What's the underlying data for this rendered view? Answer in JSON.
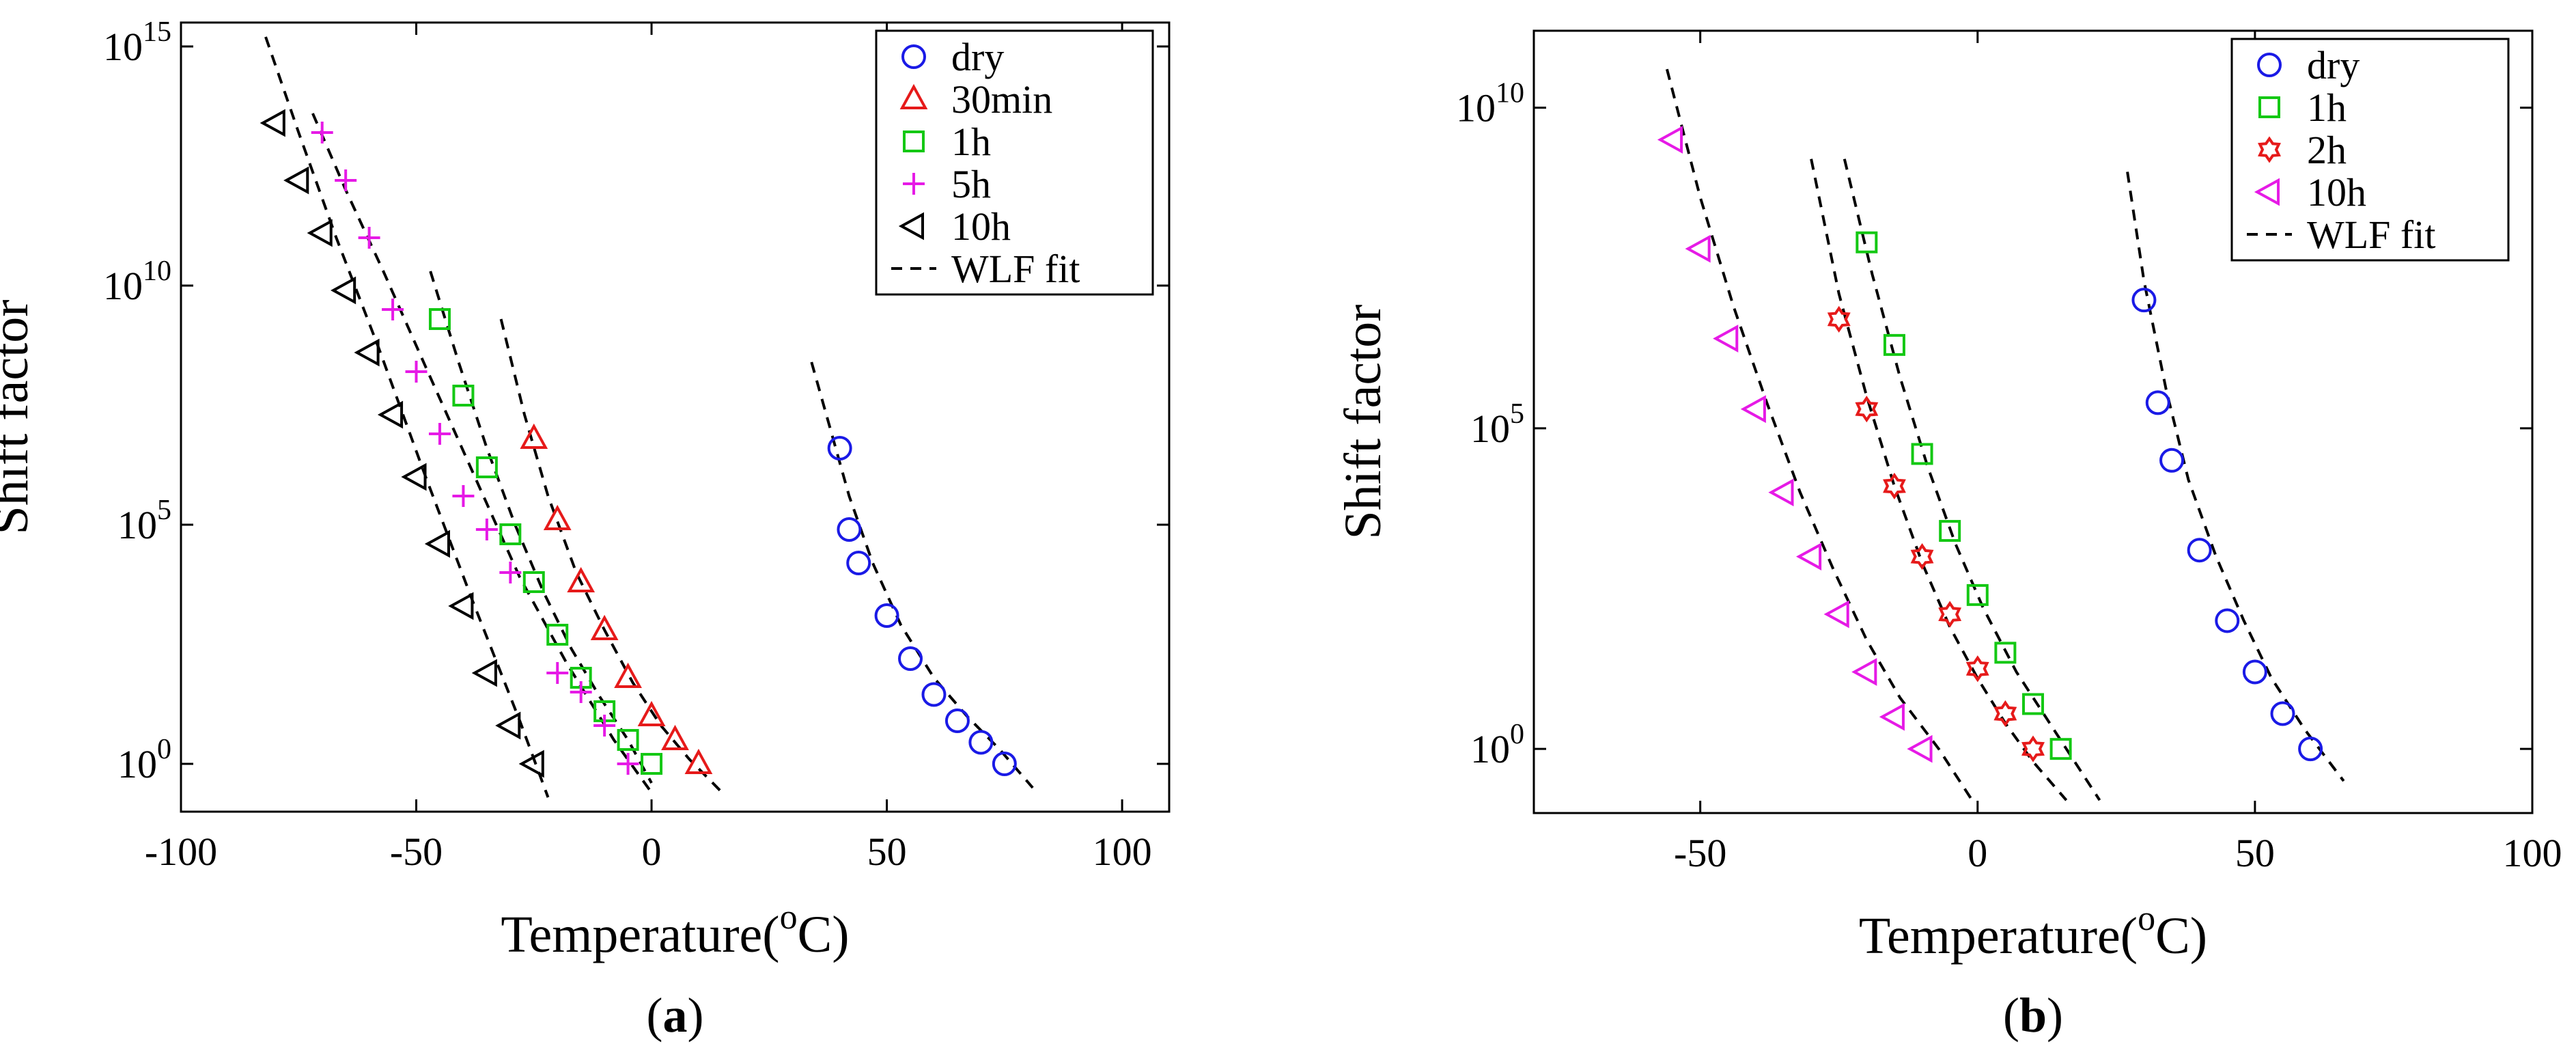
{
  "chart_data": [
    {
      "type": "scatter",
      "panel_label": {
        "open": "(",
        "letter": "a",
        "close": ")"
      },
      "xlabel": {
        "main": "Temperature(",
        "sup": "o",
        "unit": "C)"
      },
      "ylabel": "Shift factor",
      "xlim": [
        -100,
        110
      ],
      "ylim_log10": [
        -1,
        15.5
      ],
      "y_scale": "log",
      "x_ticks": [
        {
          "value": -100,
          "label": "-100"
        },
        {
          "value": -50,
          "label": "-50"
        },
        {
          "value": 0,
          "label": "0"
        },
        {
          "value": 50,
          "label": "50"
        },
        {
          "value": 100,
          "label": "100"
        }
      ],
      "y_ticks": [
        {
          "exp": 0,
          "base": "10",
          "sup": "0"
        },
        {
          "exp": 5,
          "base": "10",
          "sup": "5"
        },
        {
          "exp": 10,
          "base": "10",
          "sup": "10"
        },
        {
          "exp": 15,
          "base": "10",
          "sup": "15"
        }
      ],
      "grid": false,
      "legend_position": "top-right",
      "series": [
        {
          "name": "dry",
          "marker": "circle",
          "color": "#1a1ae6",
          "points": [
            [
              40,
              6.6
            ],
            [
              42,
              4.9
            ],
            [
              44,
              4.2
            ],
            [
              50,
              3.1
            ],
            [
              55,
              2.2
            ],
            [
              60,
              1.45
            ],
            [
              65,
              0.9
            ],
            [
              70,
              0.45
            ],
            [
              75,
              0
            ]
          ]
        },
        {
          "name": "30min",
          "marker": "triangle-up",
          "color": "#e61a1a",
          "points": [
            [
              -25,
              6.8
            ],
            [
              -20,
              5.1
            ],
            [
              -15,
              3.8
            ],
            [
              -10,
              2.8
            ],
            [
              -5,
              1.8
            ],
            [
              0,
              1.0
            ],
            [
              5,
              0.5
            ],
            [
              10,
              0
            ]
          ]
        },
        {
          "name": "1h",
          "marker": "square",
          "color": "#14c814",
          "points": [
            [
              -45,
              9.3
            ],
            [
              -40,
              7.7
            ],
            [
              -35,
              6.2
            ],
            [
              -30,
              4.8
            ],
            [
              -25,
              3.8
            ],
            [
              -20,
              2.7
            ],
            [
              -15,
              1.8
            ],
            [
              -10,
              1.1
            ],
            [
              -5,
              0.5
            ],
            [
              0,
              0
            ]
          ]
        },
        {
          "name": "5h",
          "marker": "plus",
          "color": "#e61ae6",
          "points": [
            [
              -70,
              13.2
            ],
            [
              -65,
              12.2
            ],
            [
              -60,
              11.0
            ],
            [
              -55,
              9.5
            ],
            [
              -50,
              8.2
            ],
            [
              -45,
              6.9
            ],
            [
              -40,
              5.6
            ],
            [
              -35,
              4.9
            ],
            [
              -30,
              4.0
            ],
            [
              -20,
              1.9
            ],
            [
              -15,
              1.5
            ],
            [
              -10,
              0.8
            ],
            [
              -5,
              0
            ]
          ]
        },
        {
          "name": "10h",
          "marker": "triangle-left",
          "color": "#000000",
          "points": [
            [
              -80,
              13.4
            ],
            [
              -75,
              12.2
            ],
            [
              -70,
              11.1
            ],
            [
              -65,
              9.9
            ],
            [
              -60,
              8.6
            ],
            [
              -55,
              7.3
            ],
            [
              -50,
              6.0
            ],
            [
              -45,
              4.6
            ],
            [
              -40,
              3.3
            ],
            [
              -35,
              1.9
            ],
            [
              -30,
              0.8
            ],
            [
              -25,
              0
            ]
          ]
        }
      ],
      "wlf_fits": [
        {
          "name": "WLF fit",
          "x": [
            -82,
            -75,
            -67,
            -58,
            -48,
            -38,
            -28,
            -22
          ],
          "logy": [
            15.2,
            13.2,
            11.0,
            8.7,
            6.0,
            3.4,
            0.9,
            -0.7
          ]
        },
        {
          "name": "WLF fit",
          "x": [
            -72,
            -65,
            -57,
            -48,
            -38,
            -28,
            -18,
            -8,
            0
          ],
          "logy": [
            13.6,
            12.0,
            10.3,
            8.3,
            6.1,
            3.9,
            2.1,
            0.5,
            -0.6
          ]
        },
        {
          "name": "WLF fit",
          "x": [
            -47,
            -41,
            -35,
            -29,
            -23,
            -17,
            -11,
            -5,
            0
          ],
          "logy": [
            10.3,
            8.4,
            6.6,
            5.0,
            3.6,
            2.4,
            1.4,
            0.5,
            -0.4
          ]
        },
        {
          "name": "WLF fit",
          "x": [
            -32,
            -27,
            -22,
            -16,
            -10,
            -4,
            2,
            8,
            15
          ],
          "logy": [
            9.3,
            7.3,
            5.6,
            4.0,
            2.8,
            1.7,
            0.8,
            0.1,
            -0.6
          ]
        },
        {
          "name": "WLF fit",
          "x": [
            34,
            38,
            42,
            47,
            53,
            60,
            67,
            74,
            81
          ],
          "logy": [
            8.4,
            7.0,
            5.6,
            4.2,
            2.9,
            1.8,
            1.0,
            0.3,
            -0.5
          ]
        }
      ]
    },
    {
      "type": "scatter",
      "panel_label": {
        "open": "(",
        "letter": "b",
        "close": ")"
      },
      "xlabel": {
        "main": "Temperature(",
        "sup": "o",
        "unit": "C)"
      },
      "ylabel": "Shift factor",
      "xlim": [
        -80,
        100
      ],
      "ylim_log10": [
        -1,
        11.2
      ],
      "y_scale": "log",
      "x_ticks": [
        {
          "value": -50,
          "label": "-50"
        },
        {
          "value": 0,
          "label": "0"
        },
        {
          "value": 50,
          "label": "50"
        },
        {
          "value": 100,
          "label": "100"
        }
      ],
      "y_ticks": [
        {
          "exp": 0,
          "base": "10",
          "sup": "0"
        },
        {
          "exp": 5,
          "base": "10",
          "sup": "5"
        },
        {
          "exp": 10,
          "base": "10",
          "sup": "10"
        }
      ],
      "grid": false,
      "legend_position": "top-right",
      "series": [
        {
          "name": "dry",
          "marker": "circle",
          "color": "#1a1ae6",
          "points": [
            [
              30,
              7.0
            ],
            [
              32.5,
              5.4
            ],
            [
              35,
              4.5
            ],
            [
              40,
              3.1
            ],
            [
              45,
              2.0
            ],
            [
              50,
              1.2
            ],
            [
              55,
              0.55
            ],
            [
              60,
              0
            ]
          ]
        },
        {
          "name": "1h",
          "marker": "square",
          "color": "#14c814",
          "points": [
            [
              -20,
              7.9
            ],
            [
              -15,
              6.3
            ],
            [
              -10,
              4.6
            ],
            [
              -5,
              3.4
            ],
            [
              0,
              2.4
            ],
            [
              5,
              1.5
            ],
            [
              10,
              0.7
            ],
            [
              15,
              0
            ]
          ]
        },
        {
          "name": "2h",
          "marker": "hexagram",
          "color": "#e61a1a",
          "points": [
            [
              -25,
              6.7
            ],
            [
              -20,
              5.3
            ],
            [
              -15,
              4.1
            ],
            [
              -10,
              3.0
            ],
            [
              -5,
              2.1
            ],
            [
              0,
              1.25
            ],
            [
              5,
              0.55
            ],
            [
              10,
              0
            ]
          ]
        },
        {
          "name": "10h",
          "marker": "triangle-left",
          "color": "#e61ae6",
          "points": [
            [
              -55,
              9.5
            ],
            [
              -50,
              7.8
            ],
            [
              -45,
              6.4
            ],
            [
              -40,
              5.3
            ],
            [
              -35,
              4.0
            ],
            [
              -30,
              3.0
            ],
            [
              -25,
              2.1
            ],
            [
              -20,
              1.2
            ],
            [
              -15,
              0.5
            ],
            [
              -10,
              0
            ]
          ]
        }
      ],
      "wlf_fits": [
        {
          "name": "WLF fit",
          "x": [
            -56,
            -50,
            -44,
            -38,
            -32,
            -26,
            -20,
            -14,
            -7,
            -1
          ],
          "logy": [
            10.6,
            8.6,
            6.9,
            5.4,
            4.0,
            2.8,
            1.7,
            0.8,
            0.0,
            -0.8
          ]
        },
        {
          "name": "WLF fit",
          "x": [
            -30,
            -25,
            -20,
            -15,
            -10,
            -5,
            0,
            5,
            10,
            16
          ],
          "logy": [
            9.2,
            7.1,
            5.5,
            4.1,
            2.9,
            1.9,
            1.1,
            0.4,
            -0.2,
            -0.8
          ]
        },
        {
          "name": "WLF fit",
          "x": [
            -24,
            -19,
            -14,
            -9,
            -4,
            1,
            7,
            13,
            22
          ],
          "logy": [
            9.2,
            7.4,
            5.8,
            4.4,
            3.2,
            2.2,
            1.2,
            0.4,
            -0.8
          ]
        },
        {
          "name": "WLF fit",
          "x": [
            27,
            30,
            34,
            38,
            43,
            48,
            53,
            59,
            66
          ],
          "logy": [
            9.0,
            7.3,
            5.6,
            4.2,
            3.0,
            2.0,
            1.1,
            0.3,
            -0.5
          ]
        }
      ]
    }
  ]
}
